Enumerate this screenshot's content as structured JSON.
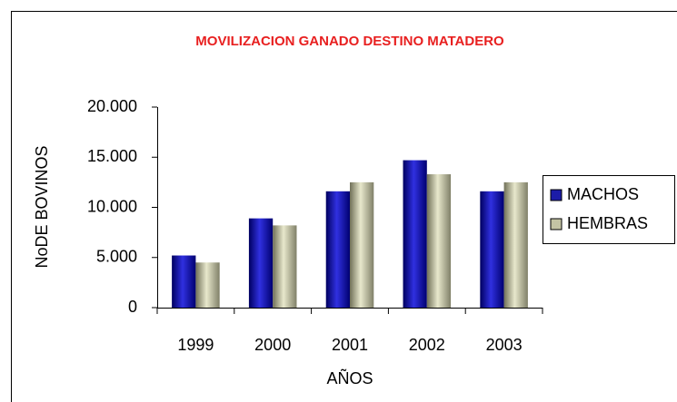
{
  "chart_data": {
    "type": "bar",
    "title": "MOVILIZACION GANADO DESTINO MATADERO",
    "x_label": "AÑOS",
    "y_label": "NoDE BOVINOS",
    "categories": [
      "1999",
      "2000",
      "2001",
      "2002",
      "2003"
    ],
    "series": [
      {
        "name": "MACHOS",
        "color": "#1c1ca8",
        "values": [
          5200,
          8900,
          11600,
          14700,
          11600
        ]
      },
      {
        "name": "HEMBRAS",
        "color": "#c4c4a4",
        "values": [
          4500,
          8200,
          12500,
          13300,
          12500
        ]
      }
    ],
    "ylim": [
      0,
      20000
    ],
    "yticks": [
      0,
      {
        "value": 5000,
        "label": "5.000"
      },
      {
        "value": 10000,
        "label": "10.000"
      },
      {
        "value": 15000,
        "label": "15.000"
      },
      {
        "value": 20000,
        "label": "20.000"
      }
    ],
    "grid": false,
    "legend": "right"
  }
}
